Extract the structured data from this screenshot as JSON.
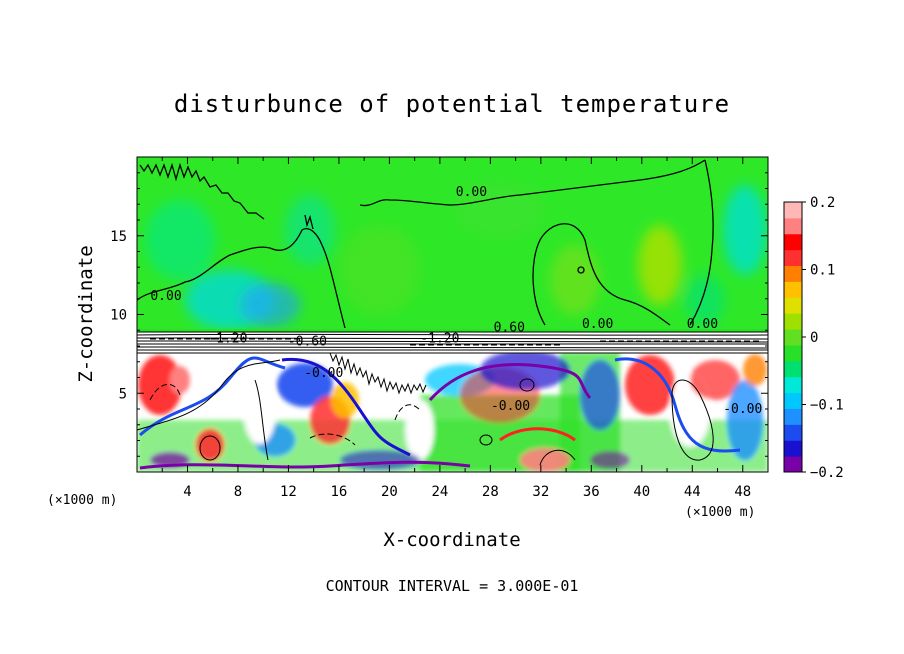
{
  "chart_data": {
    "type": "heatmap",
    "title": "disturbunce of potential temperature",
    "xlabel": "X-coordinate",
    "ylabel": "Z-coordinate",
    "x_unit_left": "(×1000 m)",
    "x_unit_right": "(×1000 m)",
    "xlim": [
      0,
      50
    ],
    "ylim": [
      0,
      20
    ],
    "x_ticks": [
      4,
      8,
      12,
      16,
      20,
      24,
      28,
      32,
      36,
      40,
      44,
      48
    ],
    "y_ticks": [
      5,
      10,
      15
    ],
    "footer": "CONTOUR INTERVAL = 3.000E-01",
    "colorbar": {
      "range": [
        -0.2,
        0.2
      ],
      "tick_values": [
        0.2,
        0.1,
        0,
        -0.1,
        -0.2
      ],
      "tick_labels": [
        "0.2",
        "0.1",
        "0",
        "−0.1",
        "−0.2"
      ],
      "colors": [
        "#7a00a8",
        "#1a10d0",
        "#1c4cf0",
        "#1e90ff",
        "#00c8ff",
        "#00e8d8",
        "#00e070",
        "#28e028",
        "#60e020",
        "#a0e000",
        "#e0e000",
        "#ffc000",
        "#ff8000",
        "#ff3030",
        "#ff0000",
        "#ff8080",
        "#ffb8b8"
      ]
    },
    "contour_labels": [
      {
        "text": "0.00",
        "x": 26.5,
        "y": 17.6
      },
      {
        "text": "0.00",
        "x": 2.3,
        "y": 11.0
      },
      {
        "text": "0.60",
        "x": 29.5,
        "y": 9.0
      },
      {
        "text": "0.00",
        "x": 36.5,
        "y": 9.2
      },
      {
        "text": "0.00",
        "x": 44.8,
        "y": 9.2
      },
      {
        "text": "-1.20",
        "x": 7.2,
        "y": 8.3
      },
      {
        "text": "-0.60",
        "x": 13.5,
        "y": 8.1
      },
      {
        "text": "-1.20",
        "x": 24.0,
        "y": 8.3
      },
      {
        "text": "-0.00",
        "x": 14.8,
        "y": 6.1
      },
      {
        "text": "-0.00",
        "x": 29.6,
        "y": 4.0
      },
      {
        "text": "-0.00",
        "x": 48.0,
        "y": 3.8
      }
    ]
  }
}
